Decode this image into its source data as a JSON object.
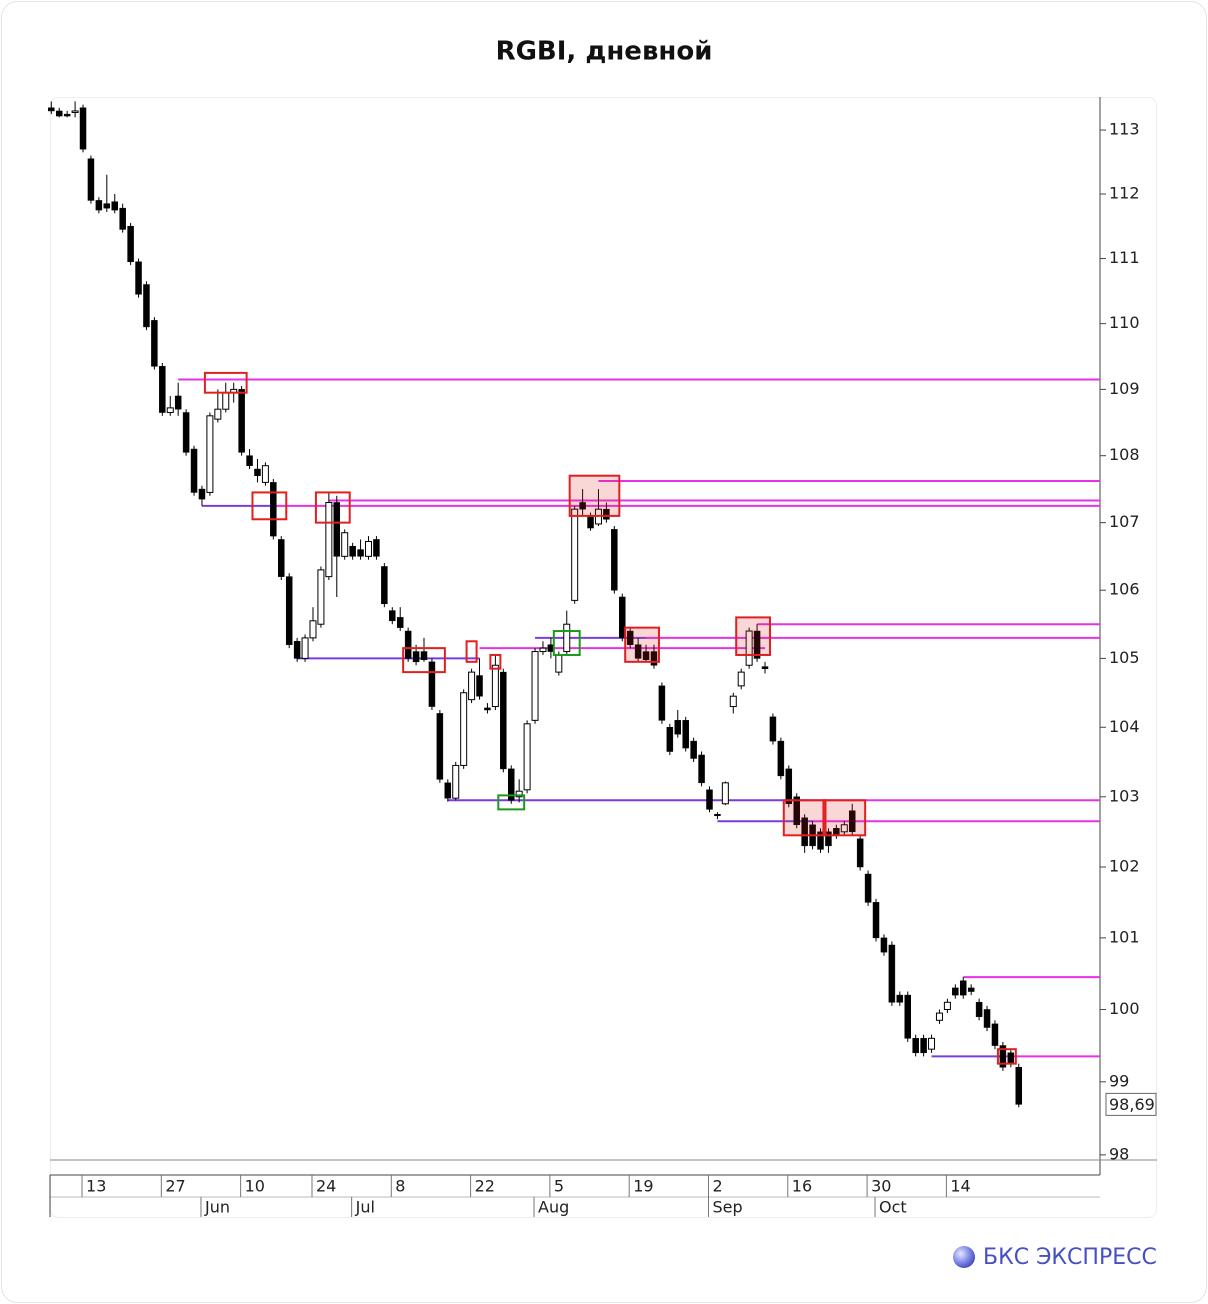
{
  "chart_data": {
    "type": "candlestick",
    "title": "RGBI, дневной",
    "brand": "БКС ЭКСПРЕСС",
    "log_scale": true,
    "ylim": [
      97.93,
      113.52
    ],
    "yticks": [
      98,
      99,
      100,
      101,
      102,
      103,
      104,
      105,
      106,
      107,
      108,
      109,
      110,
      111,
      112,
      113
    ],
    "up_color": "#ffffff",
    "down_color": "#000000",
    "last_price": {
      "value": 98.69,
      "label": "98,69"
    },
    "categories": [
      null,
      null,
      null,
      null,
      "13",
      null,
      null,
      null,
      null,
      null,
      null,
      null,
      null,
      null,
      "27",
      null,
      null,
      null,
      null,
      null,
      null,
      null,
      null,
      null,
      "10",
      null,
      null,
      null,
      null,
      null,
      null,
      null,
      null,
      "24",
      null,
      null,
      null,
      null,
      null,
      null,
      null,
      null,
      null,
      "8",
      null,
      null,
      null,
      null,
      null,
      null,
      null,
      null,
      null,
      "22",
      null,
      null,
      null,
      null,
      null,
      null,
      null,
      null,
      null,
      "5",
      null,
      null,
      null,
      null,
      null,
      null,
      null,
      null,
      null,
      "19",
      null,
      null,
      null,
      null,
      null,
      null,
      null,
      null,
      null,
      "2",
      null,
      null,
      null,
      null,
      null,
      null,
      null,
      null,
      null,
      "16",
      null,
      null,
      null,
      null,
      null,
      null,
      null,
      null,
      null,
      "30",
      null,
      null,
      null,
      null,
      null,
      null,
      null,
      null,
      null,
      "14",
      null,
      null,
      null,
      null,
      null,
      null,
      null,
      null,
      null
    ],
    "months": [
      null,
      null,
      null,
      null,
      null,
      null,
      null,
      null,
      null,
      null,
      null,
      null,
      null,
      null,
      null,
      null,
      null,
      null,
      null,
      "Jun",
      null,
      null,
      null,
      null,
      null,
      null,
      null,
      null,
      null,
      null,
      null,
      null,
      null,
      null,
      null,
      null,
      null,
      null,
      "Jul",
      null,
      null,
      null,
      null,
      null,
      null,
      null,
      null,
      null,
      null,
      null,
      null,
      null,
      null,
      null,
      null,
      null,
      null,
      null,
      null,
      null,
      null,
      "Aug",
      null,
      null,
      null,
      null,
      null,
      null,
      null,
      null,
      null,
      null,
      null,
      null,
      null,
      null,
      null,
      null,
      null,
      null,
      null,
      null,
      null,
      "Sep",
      null,
      null,
      null,
      null,
      null,
      null,
      null,
      null,
      null,
      null,
      null,
      null,
      null,
      null,
      null,
      null,
      null,
      null,
      null,
      null,
      "Oct",
      null,
      null,
      null,
      null,
      null,
      null,
      null,
      null,
      null,
      null,
      null,
      null,
      null,
      null,
      null,
      null,
      null,
      null
    ],
    "open": [
      113.35,
      113.3,
      113.25,
      113.28,
      113.35,
      112.55,
      111.9,
      111.85,
      111.88,
      111.78,
      111.5,
      110.95,
      110.6,
      110.05,
      109.35,
      108.65,
      108.9,
      108.65,
      108.1,
      107.5,
      107.45,
      108.55,
      108.7,
      108.95,
      109.0,
      108.0,
      107.8,
      107.6,
      107.6,
      106.75,
      106.2,
      105.25,
      105.0,
      105.3,
      105.5,
      106.2,
      107.3,
      106.5,
      106.65,
      106.6,
      106.5,
      106.75,
      106.35,
      105.7,
      105.6,
      105.4,
      105.1,
      105.1,
      104.95,
      104.2,
      103.2,
      102.98,
      103.45,
      104.4,
      104.75,
      104.28,
      104.3,
      104.8,
      103.4,
      103.0,
      103.1,
      104.1,
      105.1,
      105.2,
      104.8,
      105.1,
      105.85,
      107.3,
      107.1,
      106.98,
      107.2,
      106.9,
      105.9,
      105.4,
      105.2,
      105.1,
      105.1,
      104.6,
      104.0,
      104.1,
      104.1,
      103.8,
      103.6,
      103.1,
      102.75,
      102.9,
      104.3,
      104.6,
      104.9,
      105.4,
      104.88,
      104.15,
      103.8,
      103.4,
      103.0,
      102.7,
      102.6,
      102.5,
      102.5,
      102.55,
      102.5,
      102.8,
      102.4,
      101.9,
      101.5,
      101.0,
      100.9,
      100.2,
      100.2,
      99.6,
      99.6,
      99.45,
      99.85,
      100.0,
      100.3,
      100.4,
      100.3,
      100.1,
      100.0,
      99.8,
      99.5,
      99.4,
      99.2
    ],
    "high": [
      113.45,
      113.35,
      113.3,
      113.45,
      113.4,
      112.6,
      111.95,
      112.3,
      112.0,
      111.85,
      111.55,
      111.0,
      110.65,
      110.1,
      109.4,
      108.9,
      109.1,
      108.7,
      108.15,
      107.55,
      108.65,
      109.0,
      109.1,
      109.1,
      109.05,
      108.1,
      107.95,
      107.9,
      107.65,
      106.8,
      106.25,
      105.3,
      105.35,
      105.75,
      106.35,
      107.45,
      107.4,
      106.9,
      106.7,
      106.75,
      106.8,
      106.8,
      106.4,
      105.75,
      105.75,
      105.45,
      105.2,
      105.3,
      105.0,
      104.25,
      103.25,
      103.5,
      104.55,
      104.85,
      105.0,
      104.35,
      105.05,
      104.85,
      103.45,
      103.25,
      104.1,
      105.15,
      105.25,
      105.3,
      105.1,
      105.7,
      107.25,
      107.5,
      107.15,
      107.5,
      107.3,
      106.95,
      105.95,
      105.45,
      105.3,
      105.2,
      105.2,
      104.65,
      104.05,
      104.25,
      104.15,
      103.85,
      103.65,
      103.15,
      102.78,
      103.22,
      104.5,
      104.85,
      105.45,
      105.5,
      104.95,
      104.2,
      103.85,
      103.45,
      103.05,
      102.75,
      102.65,
      102.55,
      102.55,
      102.6,
      102.65,
      102.9,
      102.45,
      101.95,
      101.55,
      101.05,
      100.95,
      100.25,
      100.25,
      99.65,
      99.65,
      99.65,
      100.0,
      100.15,
      100.35,
      100.45,
      100.35,
      100.15,
      100.05,
      99.85,
      99.55,
      99.45,
      99.25
    ],
    "low": [
      113.25,
      113.2,
      113.2,
      113.2,
      112.65,
      111.85,
      111.7,
      111.72,
      111.7,
      111.4,
      110.9,
      110.4,
      109.9,
      109.3,
      108.6,
      108.6,
      108.6,
      108.0,
      107.4,
      107.25,
      107.4,
      108.5,
      108.65,
      108.8,
      108.0,
      107.8,
      107.6,
      107.55,
      106.75,
      106.15,
      105.15,
      104.95,
      104.95,
      105.25,
      105.45,
      106.15,
      105.9,
      106.45,
      106.45,
      106.45,
      106.45,
      106.45,
      105.75,
      105.5,
      105.4,
      104.95,
      104.9,
      104.95,
      104.25,
      103.2,
      102.93,
      102.95,
      103.4,
      104.35,
      104.4,
      104.2,
      104.25,
      103.35,
      102.9,
      102.92,
      103.05,
      104.05,
      105.05,
      105.0,
      104.75,
      105.05,
      105.8,
      107.1,
      106.88,
      106.95,
      107.0,
      105.95,
      105.25,
      105.15,
      104.95,
      104.95,
      104.85,
      104.05,
      103.6,
      103.85,
      103.65,
      103.5,
      103.15,
      102.78,
      102.68,
      102.88,
      104.2,
      104.55,
      104.85,
      104.95,
      104.78,
      103.75,
      103.25,
      102.85,
      102.55,
      102.2,
      102.25,
      102.2,
      102.2,
      102.4,
      102.45,
      102.45,
      101.95,
      101.45,
      100.95,
      100.75,
      100.05,
      100.05,
      99.55,
      99.35,
      99.35,
      99.4,
      99.8,
      99.95,
      100.15,
      100.15,
      100.2,
      99.85,
      99.7,
      99.45,
      99.15,
      99.2,
      98.65
    ],
    "close": [
      113.3,
      113.22,
      113.22,
      113.3,
      112.7,
      111.9,
      111.75,
      111.78,
      111.75,
      111.45,
      110.95,
      110.45,
      109.95,
      109.35,
      108.65,
      108.72,
      108.7,
      108.05,
      107.45,
      107.35,
      108.6,
      108.7,
      108.95,
      109.0,
      108.05,
      107.85,
      107.7,
      107.85,
      106.8,
      106.2,
      105.2,
      105.0,
      105.3,
      105.55,
      106.3,
      107.3,
      106.5,
      106.85,
      106.5,
      106.5,
      106.72,
      106.5,
      105.8,
      105.55,
      105.45,
      105.0,
      104.95,
      104.98,
      104.3,
      103.25,
      102.98,
      103.45,
      104.5,
      104.8,
      104.45,
      104.25,
      104.9,
      103.4,
      102.95,
      103.08,
      104.05,
      105.1,
      105.15,
      105.1,
      105.05,
      105.5,
      107.2,
      107.2,
      106.92,
      107.2,
      107.05,
      106.0,
      105.3,
      105.2,
      105.0,
      104.98,
      104.9,
      104.1,
      103.65,
      103.9,
      103.7,
      103.55,
      103.2,
      102.82,
      102.73,
      103.2,
      104.45,
      104.8,
      105.4,
      105.0,
      104.85,
      103.8,
      103.3,
      102.9,
      102.6,
      102.3,
      102.3,
      102.25,
      102.3,
      102.45,
      102.6,
      102.5,
      102.0,
      101.5,
      101.0,
      100.8,
      100.1,
      100.1,
      99.6,
      99.4,
      99.4,
      99.6,
      99.95,
      100.1,
      100.2,
      100.2,
      100.25,
      99.9,
      99.75,
      99.5,
      99.2,
      99.25,
      98.69
    ],
    "levels": [
      {
        "value": 109.15,
        "from": 16,
        "color": "#e632e6"
      },
      {
        "value": 107.25,
        "from": 19,
        "to": 28,
        "color": "#7a3ce0"
      },
      {
        "value": 107.25,
        "from": 28,
        "color": "#e632e6"
      },
      {
        "value": 107.33,
        "from": 35,
        "color": "#e632e6"
      },
      {
        "value": 107.62,
        "from": 69,
        "color": "#e632e6"
      },
      {
        "value": 105.0,
        "from": 31,
        "to": 54,
        "color": "#7a3ce0"
      },
      {
        "value": 105.15,
        "from": 54,
        "to": 90,
        "color": "#e632e6"
      },
      {
        "value": 105.3,
        "from": 61,
        "to": 75,
        "color": "#7a3ce0"
      },
      {
        "value": 105.3,
        "from": 75,
        "color": "#e632e6"
      },
      {
        "value": 105.5,
        "from": 89,
        "color": "#e632e6"
      },
      {
        "value": 102.95,
        "from": 50,
        "to": 96,
        "color": "#7a3ce0"
      },
      {
        "value": 102.95,
        "from": 96,
        "color": "#e632e6"
      },
      {
        "value": 102.65,
        "from": 84,
        "to": 96,
        "color": "#7a3ce0"
      },
      {
        "value": 102.65,
        "from": 96,
        "color": "#e632e6"
      },
      {
        "value": 100.45,
        "from": 115,
        "color": "#e632e6"
      },
      {
        "value": 99.35,
        "from": 111,
        "to": 120,
        "color": "#7a3ce0"
      },
      {
        "value": 99.35,
        "from": 120,
        "color": "#e632e6"
      }
    ],
    "boxes": [
      {
        "from": 20,
        "to": 24,
        "low": 108.95,
        "high": 109.25,
        "color": "#e02020",
        "filled": false
      },
      {
        "from": 26,
        "to": 29,
        "low": 107.05,
        "high": 107.45,
        "color": "#e02020",
        "filled": false
      },
      {
        "from": 34,
        "to": 37,
        "low": 107.0,
        "high": 107.45,
        "color": "#e02020",
        "filled": false
      },
      {
        "from": 45,
        "to": 49,
        "low": 104.8,
        "high": 105.15,
        "color": "#e02020",
        "filled": false
      },
      {
        "from": 53,
        "to": 53,
        "low": 104.95,
        "high": 105.25,
        "color": "#e02020",
        "filled": false
      },
      {
        "from": 56,
        "to": 56,
        "low": 104.85,
        "high": 105.05,
        "color": "#e02020",
        "filled": false
      },
      {
        "from": 57,
        "to": 59,
        "low": 102.82,
        "high": 103.02,
        "color": "#1a9a1a",
        "filled": false
      },
      {
        "from": 64,
        "to": 66,
        "low": 105.05,
        "high": 105.4,
        "color": "#1a9a1a",
        "filled": false
      },
      {
        "from": 66,
        "to": 71,
        "low": 107.1,
        "high": 107.7,
        "color": "#e02020",
        "filled": true
      },
      {
        "from": 73,
        "to": 76,
        "low": 104.95,
        "high": 105.45,
        "color": "#e02020",
        "filled": true
      },
      {
        "from": 87,
        "to": 90,
        "low": 105.05,
        "high": 105.6,
        "color": "#e02020",
        "filled": true
      },
      {
        "from": 93,
        "to": 97,
        "low": 102.45,
        "high": 102.95,
        "color": "#e02020",
        "filled": true
      },
      {
        "from": 98,
        "to": 102,
        "low": 102.45,
        "high": 102.95,
        "color": "#e02020",
        "filled": true
      },
      {
        "from": 120,
        "to": 121,
        "low": 99.25,
        "high": 99.45,
        "color": "#e02020",
        "filled": false
      }
    ]
  }
}
